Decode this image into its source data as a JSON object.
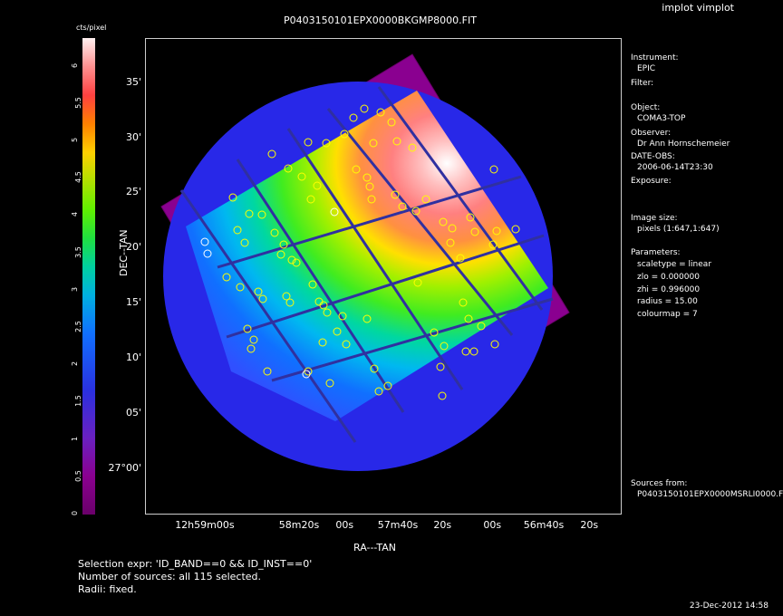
{
  "window_title": "implot vimplot",
  "plot": {
    "title": "P0403150101EPX0000BKGMP8000.FIT",
    "colorbar_label": "cts/pixel",
    "colorbar_ticks": [
      "0",
      "0.5",
      "1",
      "1.5",
      "2",
      "2.5",
      "3",
      "3.5",
      "4",
      "4.5",
      "5",
      "5.5",
      "6"
    ],
    "dec_label": "DEC--TAN",
    "ra_label": "RA---TAN",
    "dec_ticks": [
      "35'",
      "30'",
      "25'",
      "20'",
      "15'",
      "10'",
      "05'",
      "27°00'"
    ],
    "ra_ticks": [
      "12h59m00s",
      "58m20s",
      "00s",
      "57m40s",
      "20s",
      "00s",
      "56m40s",
      "20s"
    ]
  },
  "info": {
    "instrument_label": "Instrument:",
    "instrument_value": "EPIC",
    "filter_label": "Filter:",
    "object_label": "Object:",
    "object_value": "COMA3-TOP",
    "observer_label": "Observer:",
    "observer_value": "Dr Ann Hornschemeier",
    "date_label": "DATE-OBS:",
    "date_value": "2006-06-14T23:30",
    "exposure_label": "Exposure:",
    "image_size_label": "Image size:",
    "image_size_value": "pixels (1:647,1:647)",
    "parameters_label": "Parameters:",
    "scaletype": "scaletype = linear",
    "zlo": "zlo  = 0.000000",
    "zhi": "zhi  = 0.996000",
    "radius": "radius  =  15.00",
    "colourmap": "colourmap =   7",
    "sources_label": "Sources from:",
    "sources_value": "P0403150101EPX0000MSRLI0000.F"
  },
  "footer": {
    "selection_expr": "Selection expr: 'ID_BAND==0 && ID_INST==0'",
    "number_sources": "Number of sources: all 115 selected.",
    "radii": "Radii: fixed.",
    "timestamp": "23-Dec-2012 14:58"
  },
  "colors": {
    "background": "#000000",
    "source_circle": "#ffff00",
    "source_circle_alt": "#ffffff"
  }
}
